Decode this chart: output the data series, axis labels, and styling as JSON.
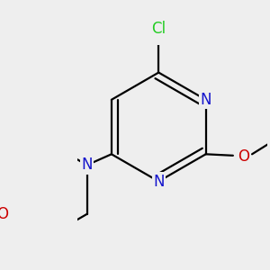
{
  "bg_color": "#eeeeee",
  "bond_color": "#000000",
  "bond_width": 1.6,
  "atom_colors": {
    "N": "#1414cc",
    "O": "#cc0000",
    "Cl": "#22cc22"
  },
  "font_size": 12
}
